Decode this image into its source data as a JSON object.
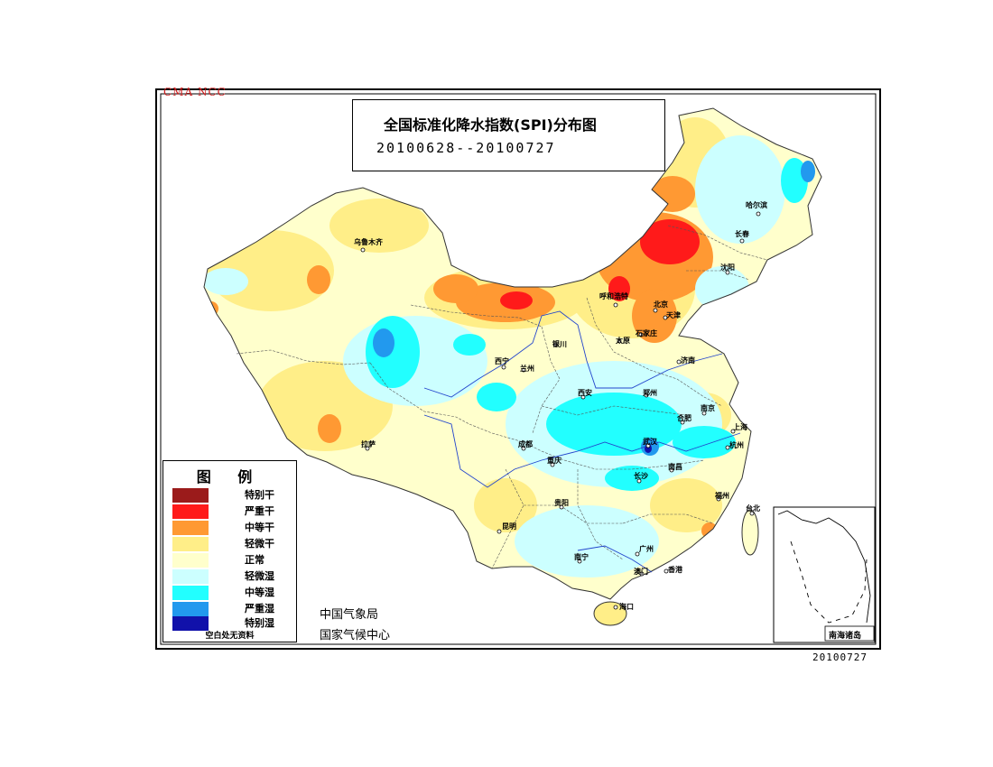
{
  "header": {
    "org_tag": "CMA NCC",
    "title": "全国标准化降水指数(SPI)分布图",
    "period": "20100628--20100727"
  },
  "legend": {
    "title": "图 例",
    "items": [
      {
        "label": "特别干",
        "color": "#9b1b1b"
      },
      {
        "label": "严重干",
        "color": "#ff1a1a"
      },
      {
        "label": "中等干",
        "color": "#ff9933"
      },
      {
        "label": "轻微干",
        "color": "#ffee88"
      },
      {
        "label": "正常",
        "color": "#ffffcc"
      },
      {
        "label": "轻微湿",
        "color": "#ccffff"
      },
      {
        "label": "中等湿",
        "color": "#22ffff"
      },
      {
        "label": "严重湿",
        "color": "#2299ee"
      },
      {
        "label": "特别湿",
        "color": "#1111aa"
      }
    ],
    "note": "空白处无资料"
  },
  "footer": {
    "agency_1": "中国气象局",
    "agency_2": "国家气候中心",
    "date_stamp": "20100727"
  },
  "inset": {
    "label": "南海诸岛"
  },
  "cities": [
    {
      "name": "乌鲁木齐"
    },
    {
      "name": "哈尔滨"
    },
    {
      "name": "长春"
    },
    {
      "name": "沈阳"
    },
    {
      "name": "呼和浩特"
    },
    {
      "name": "北京"
    },
    {
      "name": "天津"
    },
    {
      "name": "石家庄"
    },
    {
      "name": "太原"
    },
    {
      "name": "银川"
    },
    {
      "name": "西宁"
    },
    {
      "name": "兰州"
    },
    {
      "name": "济南"
    },
    {
      "name": "郑州"
    },
    {
      "name": "西安"
    },
    {
      "name": "合肥"
    },
    {
      "name": "南京"
    },
    {
      "name": "上海"
    },
    {
      "name": "杭州"
    },
    {
      "name": "武汉"
    },
    {
      "name": "成都"
    },
    {
      "name": "重庆"
    },
    {
      "name": "拉萨"
    },
    {
      "name": "长沙"
    },
    {
      "name": "南昌"
    },
    {
      "name": "福州"
    },
    {
      "name": "台北"
    },
    {
      "name": "贵阳"
    },
    {
      "name": "昆明"
    },
    {
      "name": "南宁"
    },
    {
      "name": "广州"
    },
    {
      "name": "香港"
    },
    {
      "name": "澳门"
    },
    {
      "name": "海口"
    }
  ]
}
